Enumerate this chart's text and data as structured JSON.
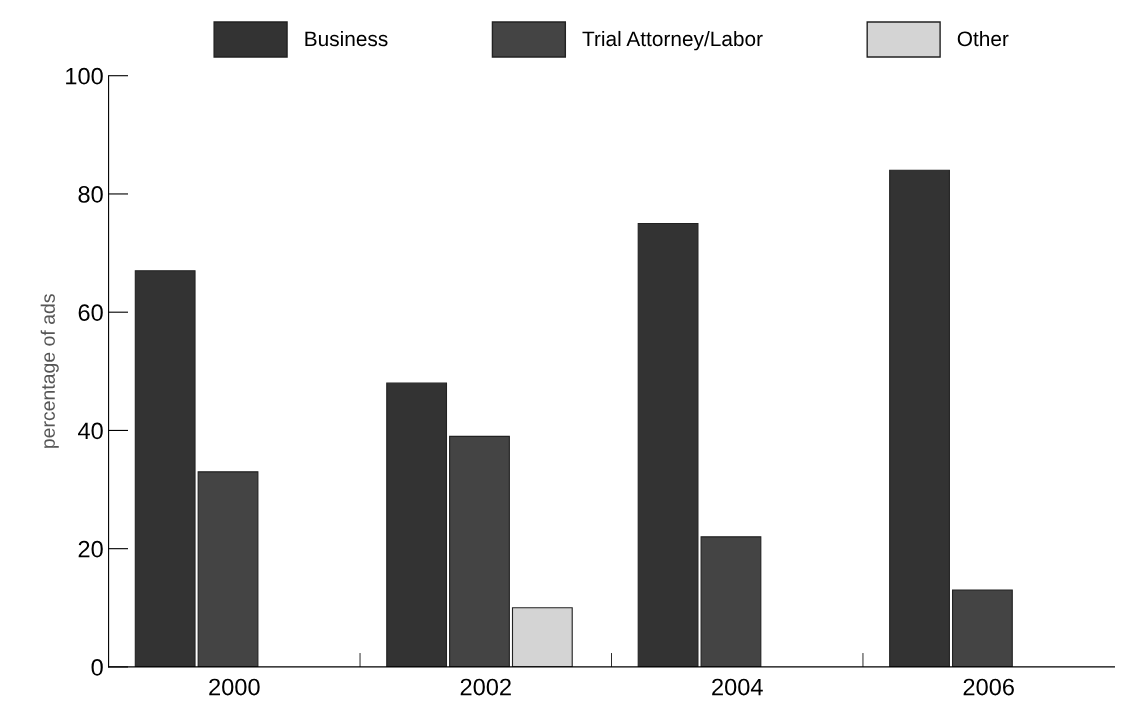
{
  "chart_data": {
    "type": "bar",
    "ylabel": "percentage of ads",
    "categories": [
      "2000",
      "2002",
      "2004",
      "2006"
    ],
    "series": [
      {
        "name": "Business",
        "color": "#333333",
        "values": [
          67,
          48,
          75,
          84
        ]
      },
      {
        "name": "Trial Attorney/Labor",
        "color": "#444444",
        "values": [
          33,
          39,
          22,
          13
        ]
      },
      {
        "name": "Other",
        "color": "#d4d4d4",
        "values": [
          null,
          10,
          null,
          null
        ]
      }
    ],
    "ylim": [
      0,
      100
    ],
    "yticks": [
      0,
      20,
      40,
      60,
      80,
      100
    ],
    "grid": false,
    "legend": "top"
  }
}
